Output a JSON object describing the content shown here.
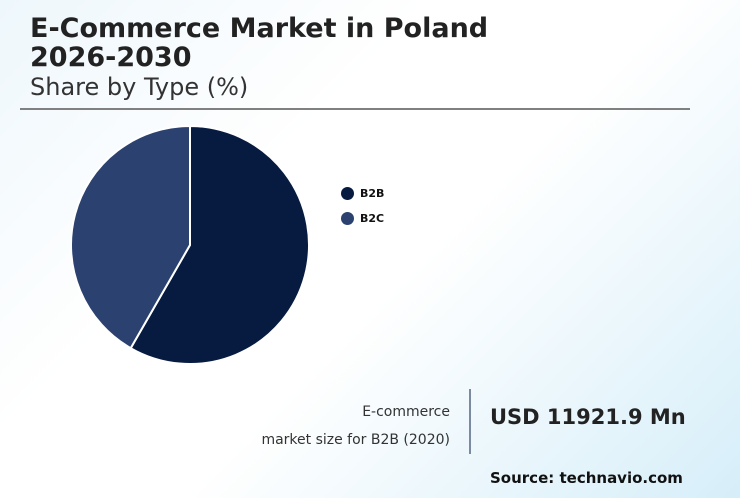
{
  "header": {
    "title_line1": "E-Commerce Market in Poland",
    "title_line2": "2026-2030",
    "subtitle": "Share by Type (%)"
  },
  "legend": [
    {
      "label": "B2B",
      "color": "#071b41"
    },
    {
      "label": "B2C",
      "color": "#2b4170"
    }
  ],
  "stat": {
    "label_line1": "E-commerce",
    "label_line2": "market size for B2B (2020)",
    "value": "USD 11921.9 Mn"
  },
  "source": "Source: technavio.com",
  "chart_data": {
    "type": "pie",
    "title": "E-Commerce Market in Poland 2026-2030",
    "subtitle": "Share by Type (%)",
    "categories": [
      "B2B",
      "B2C"
    ],
    "values": [
      58.3,
      41.7
    ],
    "colors": [
      "#071b41",
      "#2b4170"
    ],
    "start_angle": "12 o'clock, clockwise",
    "legend_position": "right"
  }
}
